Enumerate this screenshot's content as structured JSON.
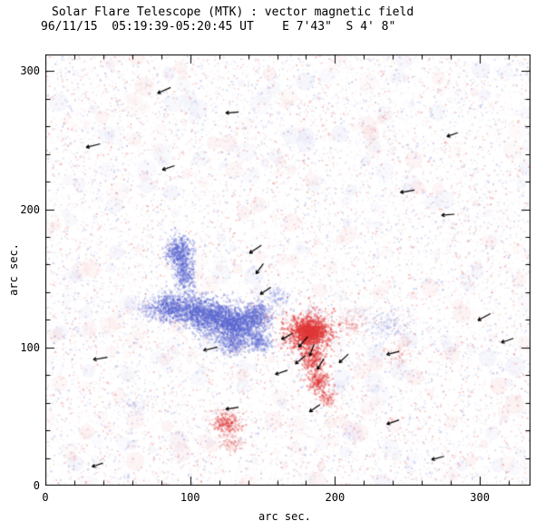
{
  "title": "Solar Flare Telescope (MTK) : vector magnetic field",
  "subtitle": "96/11/15  05:19:39-05:20:45 UT    E 7'43\"  S 4' 8\"",
  "chart_data": {
    "type": "heatmap",
    "title": "Solar Flare Telescope (MTK) : vector magnetic field",
    "subtitle": "96/11/15  05:19:39-05:20:45 UT    E 7'43\"  S 4' 8\"",
    "xlabel": "arc sec.",
    "ylabel": "arc sec.",
    "xlim": [
      0,
      335
    ],
    "ylim": [
      0,
      312
    ],
    "xticks": [
      "0",
      "100",
      "200",
      "300"
    ],
    "xtick_values": [
      0,
      100,
      200,
      300
    ],
    "yticks": [
      "0",
      "100",
      "200",
      "300"
    ],
    "ytick_values": [
      0,
      100,
      200,
      300
    ],
    "minor_tick_step": 20,
    "grid": false,
    "legend": "none",
    "colors": {
      "negative": "#5e6ad2",
      "positive": "#e03838",
      "vector": "#000000",
      "axis": "#000000",
      "background": "#ffffff"
    },
    "noise": {
      "seed": 42,
      "specks": 15000,
      "smudges": 380
    },
    "polarity_regions": [
      {
        "polarity": "negative",
        "cx": 92,
        "cy": 170,
        "sx": 5,
        "sy": 6,
        "n": 500,
        "alpha": 0.5
      },
      {
        "polarity": "negative",
        "cx": 96,
        "cy": 153,
        "sx": 3.5,
        "sy": 7,
        "n": 350,
        "alpha": 0.45
      },
      {
        "polarity": "negative",
        "cx": 86,
        "cy": 130,
        "sx": 6,
        "sy": 5,
        "n": 550,
        "alpha": 0.5
      },
      {
        "polarity": "negative",
        "cx": 103,
        "cy": 127,
        "sx": 7,
        "sy": 6,
        "n": 700,
        "alpha": 0.5
      },
      {
        "polarity": "negative",
        "cx": 118,
        "cy": 121,
        "sx": 8,
        "sy": 6,
        "n": 900,
        "alpha": 0.55
      },
      {
        "polarity": "negative",
        "cx": 133,
        "cy": 117,
        "sx": 7,
        "sy": 6,
        "n": 800,
        "alpha": 0.55
      },
      {
        "polarity": "negative",
        "cx": 146,
        "cy": 123,
        "sx": 5,
        "sy": 5,
        "n": 400,
        "alpha": 0.45
      },
      {
        "polarity": "negative",
        "cx": 128,
        "cy": 103,
        "sx": 5,
        "sy": 4,
        "n": 300,
        "alpha": 0.4
      },
      {
        "polarity": "negative",
        "cx": 147,
        "cy": 105,
        "sx": 4,
        "sy": 4,
        "n": 250,
        "alpha": 0.4
      },
      {
        "polarity": "negative",
        "cx": 70,
        "cy": 128,
        "sx": 5,
        "sy": 4,
        "n": 150,
        "alpha": 0.25
      },
      {
        "polarity": "negative",
        "cx": 160,
        "cy": 137,
        "sx": 4,
        "sy": 4,
        "n": 120,
        "alpha": 0.25
      },
      {
        "polarity": "negative",
        "cx": 235,
        "cy": 117,
        "sx": 9,
        "sy": 6,
        "n": 250,
        "alpha": 0.18
      },
      {
        "polarity": "negative",
        "cx": 62,
        "cy": 60,
        "sx": 6,
        "sy": 5,
        "n": 100,
        "alpha": 0.15
      },
      {
        "polarity": "positive",
        "cx": 181,
        "cy": 111,
        "sx": 8,
        "sy": 7,
        "n": 1100,
        "alpha": 0.55
      },
      {
        "polarity": "positive",
        "cx": 182,
        "cy": 112,
        "sx": 4,
        "sy": 3.5,
        "n": 500,
        "alpha": 0.75
      },
      {
        "polarity": "positive",
        "cx": 185,
        "cy": 91,
        "sx": 4,
        "sy": 5,
        "n": 300,
        "alpha": 0.45
      },
      {
        "polarity": "positive",
        "cx": 188,
        "cy": 76,
        "sx": 4,
        "sy": 4,
        "n": 250,
        "alpha": 0.45
      },
      {
        "polarity": "positive",
        "cx": 194,
        "cy": 64,
        "sx": 3,
        "sy": 3,
        "n": 120,
        "alpha": 0.35
      },
      {
        "polarity": "positive",
        "cx": 125,
        "cy": 46,
        "sx": 5,
        "sy": 4,
        "n": 280,
        "alpha": 0.4
      },
      {
        "polarity": "positive",
        "cx": 128,
        "cy": 31,
        "sx": 4,
        "sy": 3,
        "n": 100,
        "alpha": 0.25
      },
      {
        "polarity": "positive",
        "cx": 243,
        "cy": 98,
        "sx": 5,
        "sy": 4,
        "n": 100,
        "alpha": 0.18
      },
      {
        "polarity": "positive",
        "cx": 210,
        "cy": 118,
        "sx": 5,
        "sy": 4,
        "n": 120,
        "alpha": 0.2
      }
    ],
    "vectors": [
      {
        "x": 82,
        "y": 286,
        "angle": 205,
        "len": 10
      },
      {
        "x": 129,
        "y": 270,
        "angle": 185,
        "len": 9
      },
      {
        "x": 33,
        "y": 246,
        "angle": 195,
        "len": 10
      },
      {
        "x": 85,
        "y": 230,
        "angle": 200,
        "len": 9
      },
      {
        "x": 250,
        "y": 213,
        "angle": 190,
        "len": 10
      },
      {
        "x": 278,
        "y": 196,
        "angle": 185,
        "len": 9
      },
      {
        "x": 281,
        "y": 254,
        "angle": 200,
        "len": 8
      },
      {
        "x": 145,
        "y": 171,
        "angle": 215,
        "len": 10
      },
      {
        "x": 148,
        "y": 157,
        "angle": 235,
        "len": 9
      },
      {
        "x": 152,
        "y": 141,
        "angle": 215,
        "len": 9
      },
      {
        "x": 114,
        "y": 99,
        "angle": 195,
        "len": 10
      },
      {
        "x": 38,
        "y": 92,
        "angle": 190,
        "len": 10
      },
      {
        "x": 167,
        "y": 108,
        "angle": 210,
        "len": 9
      },
      {
        "x": 178,
        "y": 104,
        "angle": 230,
        "len": 10
      },
      {
        "x": 184,
        "y": 98,
        "angle": 250,
        "len": 9
      },
      {
        "x": 176,
        "y": 91,
        "angle": 220,
        "len": 9
      },
      {
        "x": 190,
        "y": 88,
        "angle": 240,
        "len": 9
      },
      {
        "x": 163,
        "y": 82,
        "angle": 200,
        "len": 9
      },
      {
        "x": 206,
        "y": 92,
        "angle": 225,
        "len": 9
      },
      {
        "x": 240,
        "y": 96,
        "angle": 195,
        "len": 9
      },
      {
        "x": 303,
        "y": 122,
        "angle": 210,
        "len": 10
      },
      {
        "x": 319,
        "y": 105,
        "angle": 200,
        "len": 9
      },
      {
        "x": 129,
        "y": 56,
        "angle": 190,
        "len": 9
      },
      {
        "x": 186,
        "y": 56,
        "angle": 215,
        "len": 9
      },
      {
        "x": 240,
        "y": 46,
        "angle": 200,
        "len": 9
      },
      {
        "x": 271,
        "y": 20,
        "angle": 195,
        "len": 9
      },
      {
        "x": 36,
        "y": 15,
        "angle": 200,
        "len": 8
      }
    ]
  }
}
